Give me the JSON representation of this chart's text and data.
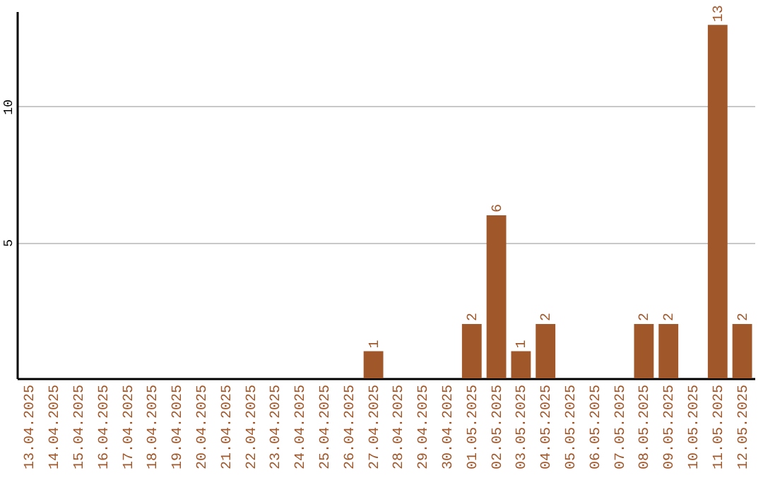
{
  "chart_data": {
    "type": "bar",
    "categories": [
      "13.04.2025",
      "14.04.2025",
      "15.04.2025",
      "16.04.2025",
      "17.04.2025",
      "18.04.2025",
      "19.04.2025",
      "20.04.2025",
      "21.04.2025",
      "22.04.2025",
      "23.04.2025",
      "24.04.2025",
      "25.04.2025",
      "26.04.2025",
      "27.04.2025",
      "28.04.2025",
      "29.04.2025",
      "30.04.2025",
      "01.05.2025",
      "02.05.2025",
      "03.05.2025",
      "04.05.2025",
      "05.05.2025",
      "06.05.2025",
      "07.05.2025",
      "08.05.2025",
      "09.05.2025",
      "10.05.2025",
      "11.05.2025",
      "12.05.2025"
    ],
    "values": [
      0,
      0,
      0,
      0,
      0,
      0,
      0,
      0,
      0,
      0,
      0,
      0,
      0,
      0,
      1,
      0,
      0,
      0,
      2,
      6,
      1,
      2,
      0,
      0,
      0,
      2,
      2,
      0,
      13,
      2
    ],
    "value_labels": [
      null,
      null,
      null,
      null,
      null,
      null,
      null,
      null,
      null,
      null,
      null,
      null,
      null,
      null,
      "1",
      null,
      null,
      null,
      "2",
      "6",
      "1",
      "2",
      null,
      null,
      null,
      "2",
      "2",
      null,
      "13",
      "2"
    ],
    "color": "#a0572a",
    "ylim": [
      0,
      13.5
    ],
    "yticks": [
      5,
      10
    ],
    "grid": "y"
  }
}
